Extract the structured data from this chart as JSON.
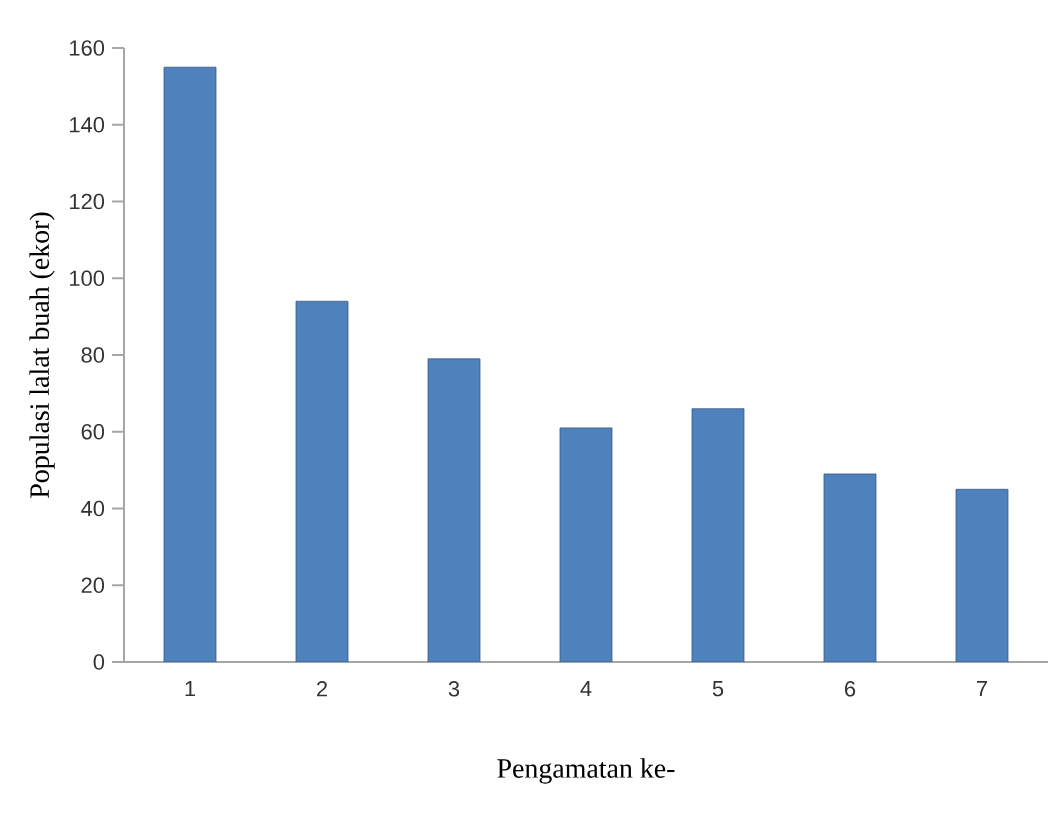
{
  "chart_data": {
    "type": "bar",
    "xlabel": "Pengamatan ke-",
    "ylabel": "Populasi lalat buah (ekor)",
    "categories": [
      "1",
      "2",
      "3",
      "4",
      "5",
      "6",
      "7"
    ],
    "values": [
      155,
      94,
      79,
      61,
      66,
      49,
      45
    ],
    "color": "#4f81bd",
    "ylim": [
      0,
      160
    ],
    "yticks": [
      0,
      20,
      40,
      60,
      80,
      100,
      120,
      140,
      160
    ],
    "grid": false
  }
}
